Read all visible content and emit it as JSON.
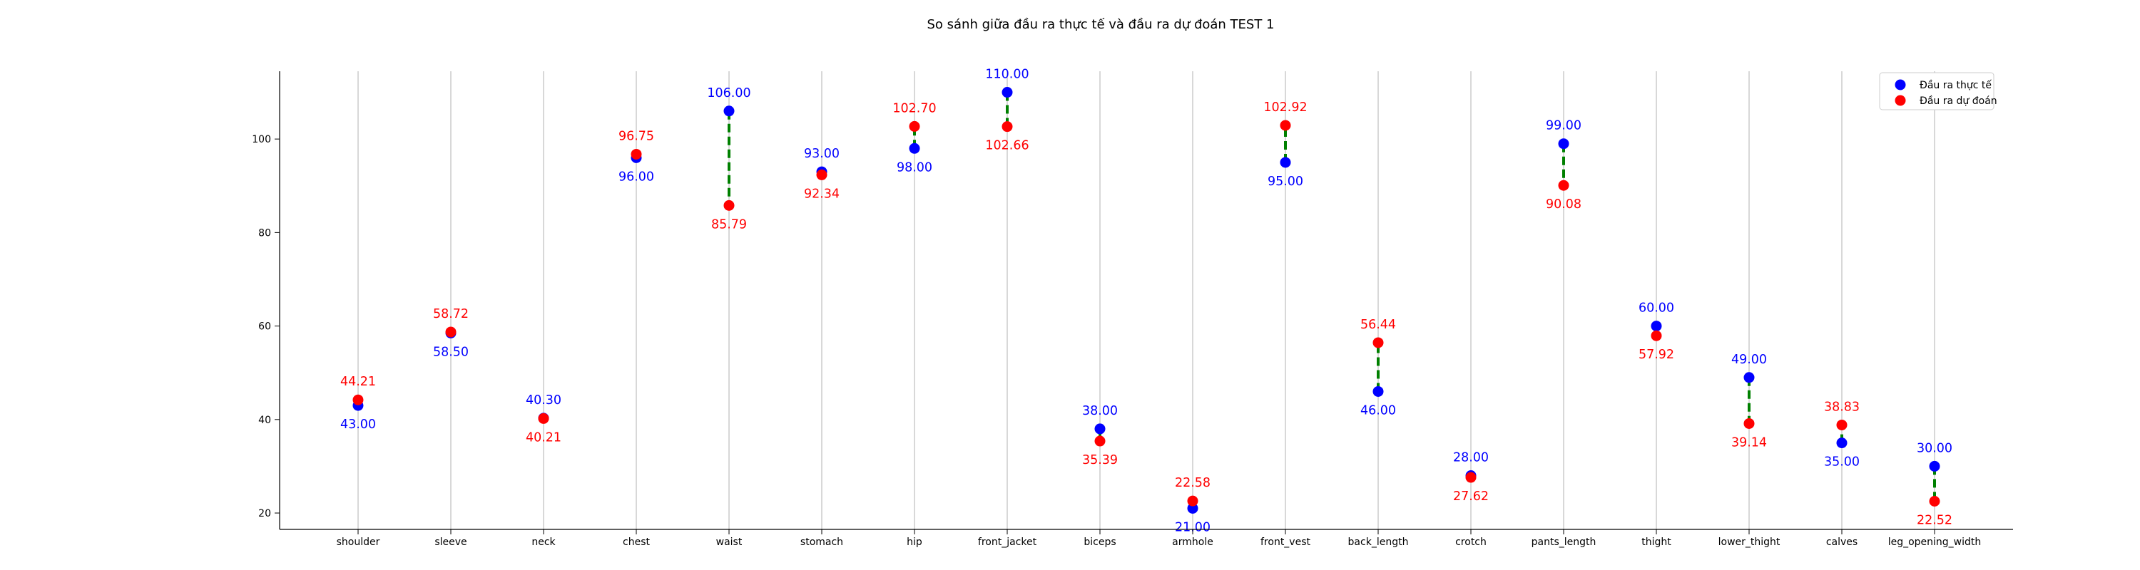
{
  "chart_data": {
    "type": "scatter",
    "title": "So sánh giữa đầu ra thực tế và đầu ra dự đoán TEST 1",
    "xlabel": "",
    "ylabel": "",
    "ylim": [
      16.5,
      114.5
    ],
    "yticks": [
      20,
      40,
      60,
      80,
      100
    ],
    "grid": "vertical",
    "legend_position": "top-right",
    "categories": [
      "shoulder",
      "sleeve",
      "neck",
      "chest",
      "waist",
      "stomach",
      "hip",
      "front_jacket",
      "biceps",
      "armhole",
      "front_vest",
      "back_length",
      "crotch",
      "pants_length",
      "thight",
      "lower_thight",
      "calves",
      "leg_opening_width"
    ],
    "series": [
      {
        "name": "Đầu ra thực tế",
        "color": "#0000ff",
        "values": [
          43.0,
          58.5,
          40.3,
          96.0,
          106.0,
          93.0,
          98.0,
          110.0,
          38.0,
          21.0,
          95.0,
          46.0,
          28.0,
          99.0,
          60.0,
          49.0,
          35.0,
          30.0
        ],
        "labels": [
          "43.00",
          "58.50",
          "40.30",
          "96.00",
          "106.00",
          "93.00",
          "98.00",
          "110.00",
          "38.00",
          "21.00",
          "95.00",
          "46.00",
          "28.00",
          "99.00",
          "60.00",
          "49.00",
          "35.00",
          "30.00"
        ]
      },
      {
        "name": "Đầu ra dự đoán",
        "color": "#ff0000",
        "values": [
          44.21,
          58.72,
          40.21,
          96.75,
          85.79,
          92.34,
          102.7,
          102.66,
          35.39,
          22.58,
          102.92,
          56.44,
          27.62,
          90.08,
          57.92,
          39.14,
          38.83,
          22.52
        ],
        "labels": [
          "44.21",
          "58.72",
          "40.21",
          "96.75",
          "85.79",
          "92.34",
          "102.70",
          "102.66",
          "35.39",
          "22.58",
          "102.92",
          "56.44",
          "27.62",
          "90.08",
          "57.92",
          "39.14",
          "38.83",
          "22.52"
        ]
      }
    ],
    "connector_color": "#008000"
  }
}
